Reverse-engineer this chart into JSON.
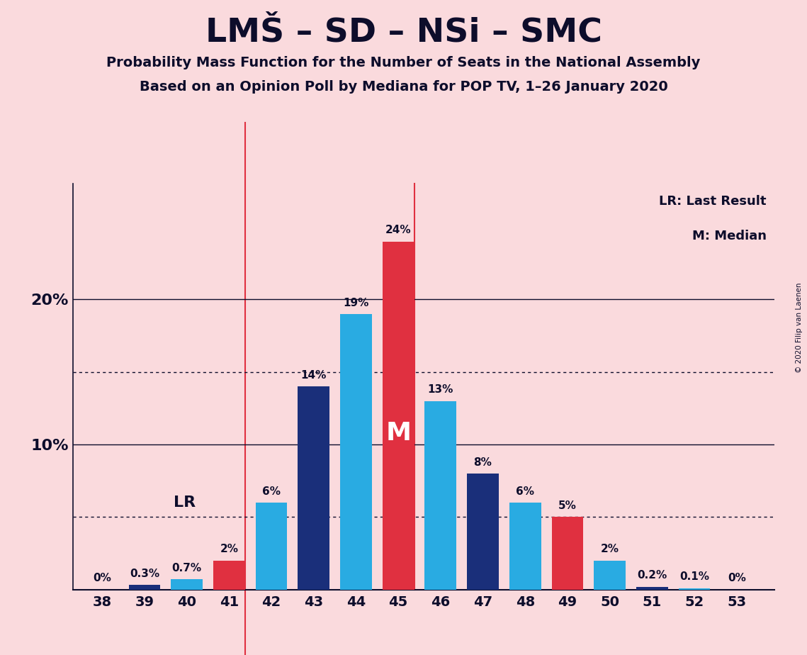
{
  "title": "LMŠ – SD – NSi – SMC",
  "subtitle1": "Probability Mass Function for the Number of Seats in the National Assembly",
  "subtitle2": "Based on an Opinion Poll by Mediana for POP TV, 1–26 January 2020",
  "copyright": "© 2020 Filip van Laenen",
  "legend_lr": "LR: Last Result",
  "legend_m": "M: Median",
  "seats": [
    38,
    39,
    40,
    41,
    42,
    43,
    44,
    45,
    46,
    47,
    48,
    49,
    50,
    51,
    52,
    53
  ],
  "values": [
    0.0,
    0.3,
    0.7,
    2.0,
    6.0,
    14.0,
    19.0,
    24.0,
    13.0,
    8.0,
    6.0,
    5.0,
    2.0,
    0.2,
    0.1,
    0.0
  ],
  "labels": [
    "0%",
    "0.3%",
    "0.7%",
    "2%",
    "6%",
    "14%",
    "19%",
    "24%",
    "13%",
    "8%",
    "6%",
    "5%",
    "2%",
    "0.2%",
    "0.1%",
    "0%"
  ],
  "bar_colors": [
    "#1a2f7a",
    "#1a2f7a",
    "#29abe2",
    "#e03040",
    "#29abe2",
    "#1a2f7a",
    "#29abe2",
    "#e03040",
    "#29abe2",
    "#1a2f7a",
    "#29abe2",
    "#e03040",
    "#29abe2",
    "#1a2f7a",
    "#29abe2",
    "#1a2f7a"
  ],
  "lr_seat": 41,
  "median_seat": 45,
  "background_color": "#fadadd",
  "text_color": "#0d0d2b",
  "dotted_lines": [
    5.0,
    15.0
  ],
  "solid_lines": [
    10.0,
    20.0
  ],
  "bar_width": 0.75,
  "ylim": [
    0,
    28
  ],
  "figsize": [
    11.39,
    9.24
  ],
  "dpi": 100
}
